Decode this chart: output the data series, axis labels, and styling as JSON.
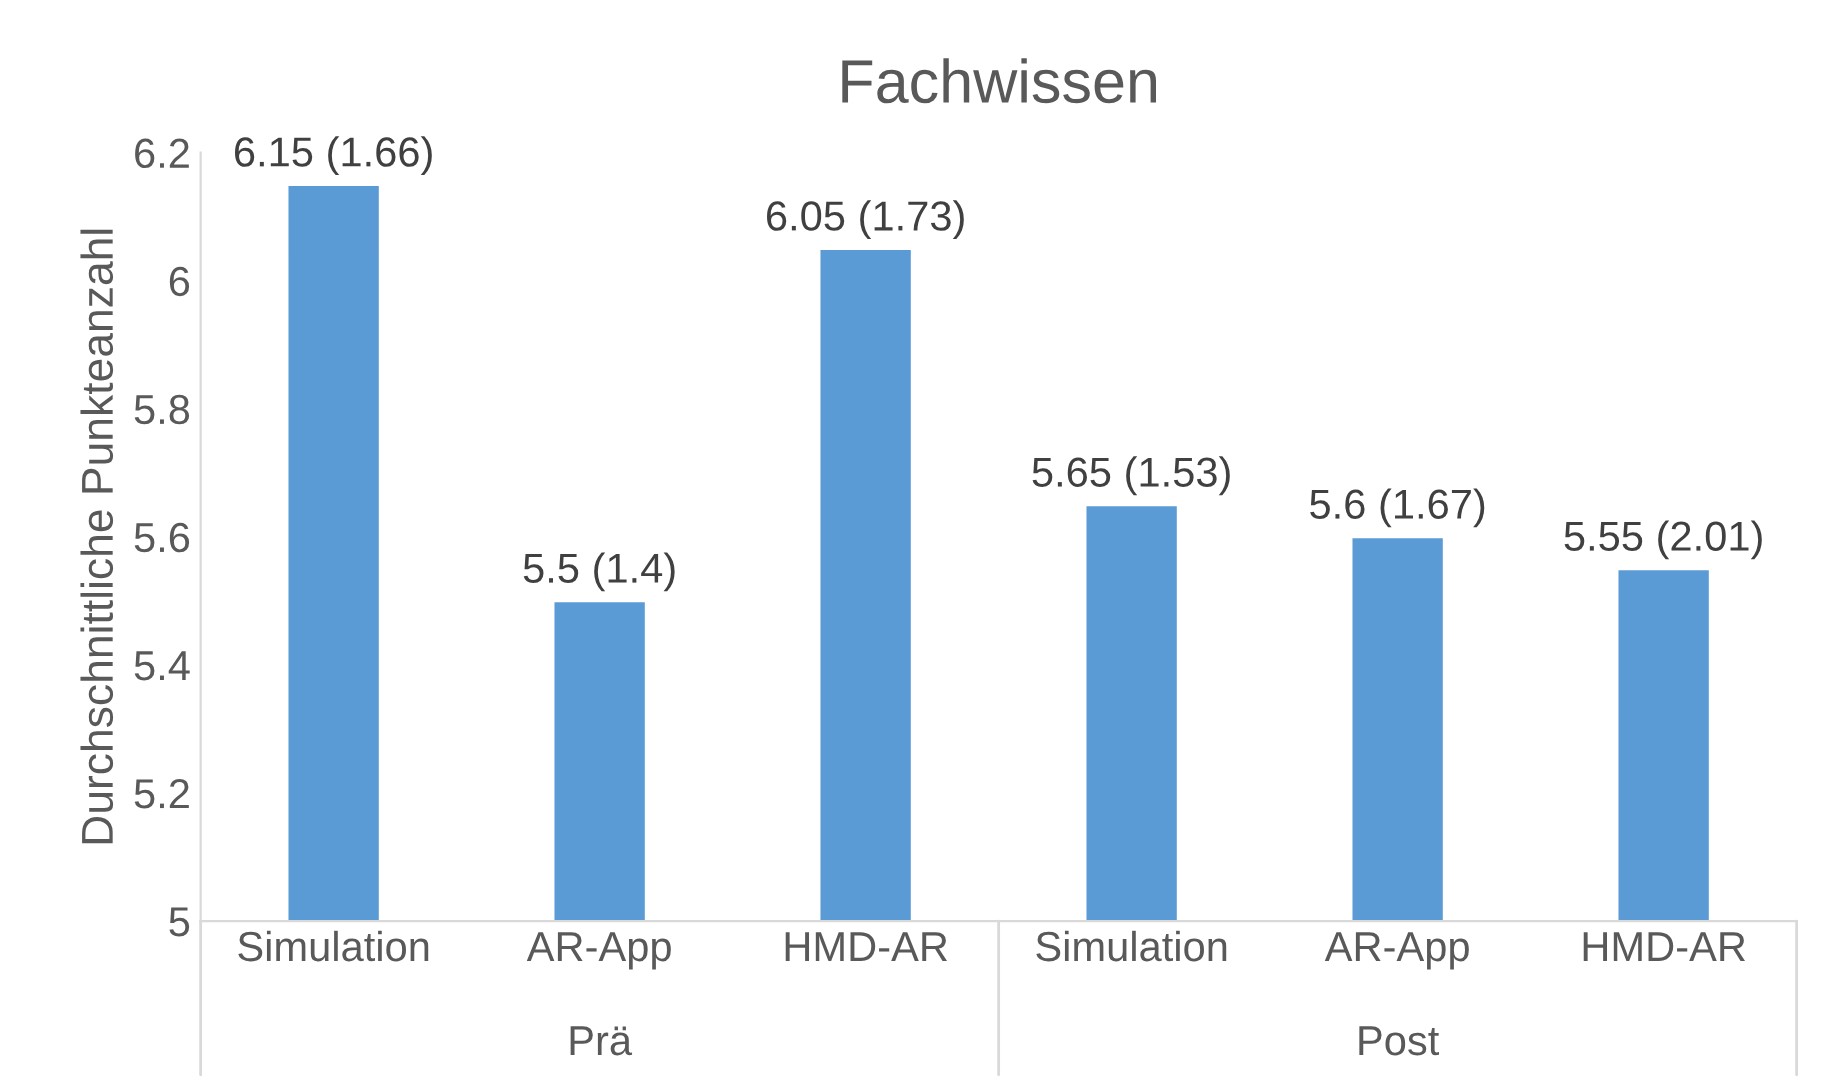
{
  "chart_data": {
    "type": "bar",
    "title": "Fachwissen",
    "ylabel": "Durchschnittliche Punkteanzahl",
    "categories": [
      "Simulation",
      "AR-App",
      "HMD-AR",
      "Simulation",
      "AR-App",
      "HMD-AR"
    ],
    "values": [
      6.15,
      5.5,
      6.05,
      5.65,
      5.6,
      5.55
    ],
    "value_labels": [
      "6.15 (1.66)",
      "5.5 (1.4)",
      "6.05 (1.73)",
      "5.65 (1.53)",
      "5.6 (1.67)",
      "5.55 (2.01)"
    ],
    "color": "#5b9bd5",
    "ylim": [
      5,
      6.2
    ],
    "yticks": [
      5,
      5.2,
      5.4,
      5.6,
      5.8,
      6,
      6.2
    ],
    "annotations": [
      "Prä",
      "Post"
    ],
    "grid": false
  }
}
